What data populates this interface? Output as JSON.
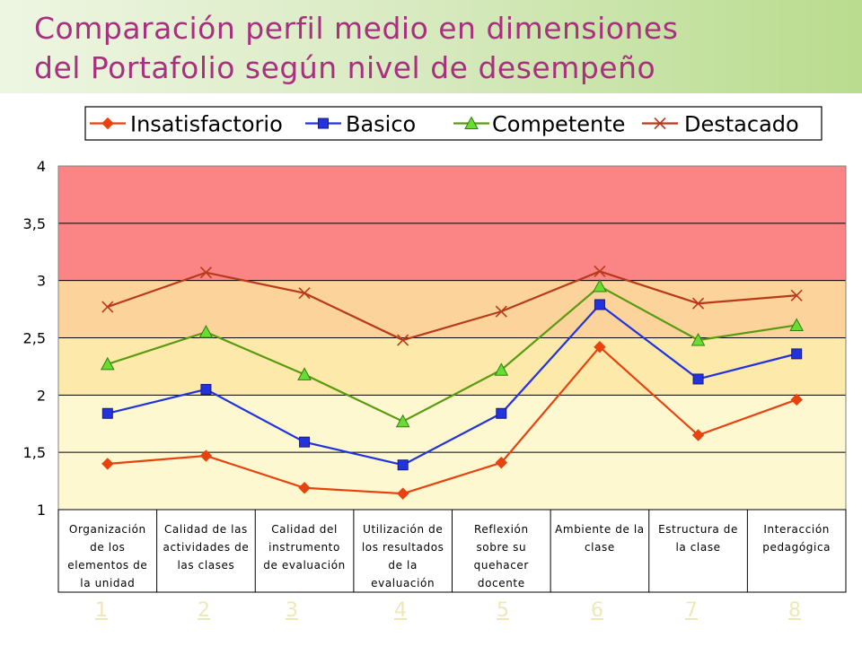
{
  "title": {
    "line1": "Comparación perfil medio en dimensiones",
    "line2": "del Portafolio según nivel de desempeño"
  },
  "chart_data": {
    "type": "line",
    "categories": [
      "Organización de los elementos de la unidad",
      "Calidad de las actividades de las clases",
      "Calidad del instrumento de evaluación",
      "Utilización de los resultados de la evaluación",
      "Reflexión sobre su quehacer docente",
      "Ambiente de la clase",
      "Estructura de la clase",
      "Interacción pedagógica"
    ],
    "category_lines": [
      [
        "Organización",
        "de los",
        "elementos de",
        "la unidad"
      ],
      [
        "Calidad de las",
        "actividades de",
        "las clases"
      ],
      [
        "Calidad del",
        "instrumento",
        "de evaluación"
      ],
      [
        "Utilización de",
        "los resultados",
        "de la",
        "evaluación"
      ],
      [
        "Reflexión",
        "sobre su",
        "quehacer",
        "docente"
      ],
      [
        "Ambiente de la",
        "clase"
      ],
      [
        "Estructura de",
        "la clase"
      ],
      [
        "Interacción",
        "pedagógica"
      ]
    ],
    "series": [
      {
        "name": "Insatisfactorio",
        "color": "#e8420f",
        "marker": "diamond",
        "values": [
          1.4,
          1.47,
          1.19,
          1.14,
          1.41,
          2.42,
          1.65,
          1.96
        ]
      },
      {
        "name": "Basico",
        "color": "#2233dd",
        "marker": "square",
        "values": [
          1.84,
          2.05,
          1.59,
          1.39,
          1.84,
          2.79,
          2.14,
          2.36
        ]
      },
      {
        "name": "Competente",
        "color": "#5a9a10",
        "marker": "triangle",
        "values": [
          2.27,
          2.55,
          2.18,
          1.77,
          2.22,
          2.95,
          2.48,
          2.61
        ]
      },
      {
        "name": "Destacado",
        "color": "#b83a1a",
        "marker": "x",
        "values": [
          2.77,
          3.07,
          2.89,
          2.48,
          2.73,
          3.08,
          2.8,
          2.87
        ]
      }
    ],
    "ylim": [
      1,
      4
    ],
    "yticks": [
      "1",
      "1,5",
      "2",
      "2,5",
      "3",
      "3,5",
      "4"
    ],
    "ytick_values": [
      1,
      1.5,
      2,
      2.5,
      3,
      3.5,
      4
    ],
    "bands": [
      {
        "from": 1,
        "to": 2,
        "color": "#fdf8d0"
      },
      {
        "from": 2,
        "to": 2.5,
        "color": "#fde9a9"
      },
      {
        "from": 2.5,
        "to": 3,
        "color": "#fcd39a"
      },
      {
        "from": 3,
        "to": 4,
        "color": "#fb8584"
      }
    ],
    "grid": true,
    "legend": "top"
  },
  "page_links": [
    "1",
    "2",
    "3",
    "4",
    "5",
    "6",
    "7",
    "8"
  ]
}
